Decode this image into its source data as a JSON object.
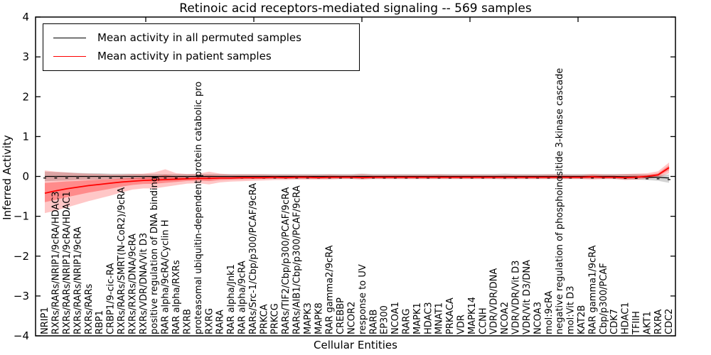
{
  "figure": {
    "title": "Retinoic acid receptors-mediated signaling -- 569 samples",
    "xlabel": "Cellular Entities",
    "ylabel": "Inferred Activity",
    "legend_items": [
      {
        "label": "Mean activity in all permuted samples",
        "color": "#000000"
      },
      {
        "label": "Mean activity in patient samples",
        "color": "#ff0000"
      }
    ],
    "colors": {
      "patient_line": "#ff0000",
      "patient_band": "rgba(255,0,0,0.22)",
      "patient_band_inner": "rgba(255,0,0,0.30)",
      "permuted_line": "#000000",
      "permuted_band": "rgba(130,130,130,0.35)",
      "axis": "#000000"
    }
  },
  "chart_data": {
    "type": "line",
    "title": "Retinoic acid receptors-mediated signaling -- 569 samples",
    "xlabel": "Cellular Entities",
    "ylabel": "Inferred Activity",
    "ylim": [
      -4,
      4
    ],
    "yticks": [
      4,
      3,
      2,
      1,
      0,
      -1,
      -2,
      -3,
      -4
    ],
    "ytick_labels": [
      "4",
      "3",
      "2",
      "1",
      "0",
      "−1",
      "−2",
      "−3",
      "−4"
    ],
    "grid": false,
    "legend_position": "upper left",
    "zero_marker_row": true,
    "categories": [
      "NRIP1",
      "RXRs/RARs/NRIP1/9cRA/HDAC3",
      "RXRs/RARs/NRIP1/9cRA/HDAC1",
      "RXRs/RARs/NRIP1/9cRA",
      "RXRs/RARs",
      "RBP1",
      "CRBP1/9-cic-RA",
      "RXRs/RARs/SMRT(N-CoR2)/9cRA",
      "RXRs/RXRs/DNA/9cRA",
      "RXRs/VDR/DNA/Vit D3",
      "positive regulation of DNA binding",
      "RAR alpha/9cRA/Cyclin H",
      "RAR alpha/RXRs",
      "RXRB",
      "proteasomal ubiquitin-dependent protein catabolic pro",
      "RXRG",
      "RARA",
      "RAR alpha/Jnk1",
      "RAR alpha/9cRA",
      "RARs/Src-1/Cbp/p300/PCAF/9cRA",
      "PRKCA",
      "PRKCG",
      "RARs/TIF2/Cbp/p300/PCAF/9cRA",
      "RARs/AIB1/Cbp/p300/PCAF/9cRA",
      "MAPK3",
      "MAPK8",
      "RAR gamma2/9cRA",
      "CREBBP",
      "NCOR2",
      "response to UV",
      "RARB",
      "EP300",
      "NCOA1",
      "RARG",
      "MAPK1",
      "HDAC3",
      "MNAT1",
      "PRKACA",
      "VDR",
      "MAPK14",
      "CCNH",
      "VDR/VDR/DNA",
      "NCOA2",
      "VDR/VDR/Vit D3",
      "VDR/Vit D3/DNA",
      "NCOA3",
      "mol:9cRA",
      "negative regulation of phosphoinositide 3-kinase cascade",
      "mol:Vit D3",
      "KAT2B",
      "RAR gamma1/9cRA",
      "Cbp/p300/PCAF",
      "CDK7",
      "HDAC1",
      "TFIIH",
      "AKT1",
      "RXRA",
      "CDC2"
    ],
    "series": [
      {
        "name": "Mean activity in all permuted samples",
        "color": "#000000",
        "values": [
          0,
          0,
          0,
          0,
          0,
          0,
          0,
          0,
          0,
          0,
          0,
          0,
          0,
          0,
          0,
          0,
          0,
          0,
          0,
          0,
          0,
          0,
          0,
          0,
          0,
          0,
          0,
          0,
          0,
          0,
          0,
          0,
          0,
          0,
          0,
          0,
          0,
          0,
          0,
          0,
          0,
          0,
          0,
          0,
          0,
          0,
          0,
          0,
          0,
          0,
          0,
          0,
          0,
          -0.01,
          -0.01,
          -0.02,
          -0.02,
          -0.04
        ],
        "band_upper": [
          0.12,
          0.11,
          0.1,
          0.09,
          0.08,
          0.08,
          0.07,
          0.07,
          0.07,
          0.06,
          0.06,
          0.06,
          0.06,
          0.06,
          0.06,
          0.06,
          0.06,
          0.06,
          0.06,
          0.06,
          0.06,
          0.06,
          0.06,
          0.06,
          0.06,
          0.06,
          0.06,
          0.06,
          0.06,
          0.07,
          0.06,
          0.06,
          0.06,
          0.06,
          0.06,
          0.06,
          0.06,
          0.06,
          0.06,
          0.06,
          0.06,
          0.06,
          0.07,
          0.06,
          0.06,
          0.06,
          0.06,
          0.06,
          0.06,
          0.06,
          0.06,
          0.06,
          0.06,
          0.06,
          0.06,
          0.05,
          0.04,
          0.05
        ],
        "band_lower": [
          -0.12,
          -0.11,
          -0.1,
          -0.09,
          -0.08,
          -0.08,
          -0.07,
          -0.07,
          -0.07,
          -0.06,
          -0.06,
          -0.06,
          -0.06,
          -0.06,
          -0.06,
          -0.06,
          -0.06,
          -0.06,
          -0.06,
          -0.06,
          -0.06,
          -0.06,
          -0.06,
          -0.06,
          -0.06,
          -0.06,
          -0.06,
          -0.06,
          -0.06,
          -0.07,
          -0.06,
          -0.06,
          -0.06,
          -0.06,
          -0.06,
          -0.06,
          -0.06,
          -0.06,
          -0.06,
          -0.06,
          -0.06,
          -0.06,
          -0.07,
          -0.06,
          -0.06,
          -0.06,
          -0.06,
          -0.06,
          -0.06,
          -0.06,
          -0.06,
          -0.06,
          -0.06,
          -0.08,
          -0.08,
          -0.09,
          -0.11,
          -0.16
        ]
      },
      {
        "name": "Mean activity in patient samples",
        "color": "#ff0000",
        "values": [
          -0.42,
          -0.36,
          -0.31,
          -0.27,
          -0.23,
          -0.2,
          -0.17,
          -0.14,
          -0.12,
          -0.1,
          -0.09,
          -0.08,
          -0.07,
          -0.06,
          -0.05,
          -0.05,
          -0.04,
          -0.04,
          -0.03,
          -0.03,
          -0.03,
          -0.02,
          -0.03,
          -0.02,
          -0.02,
          -0.03,
          -0.02,
          -0.02,
          -0.02,
          -0.03,
          -0.02,
          -0.02,
          -0.02,
          -0.02,
          -0.02,
          -0.02,
          -0.02,
          -0.02,
          -0.02,
          -0.02,
          -0.02,
          -0.02,
          -0.02,
          -0.02,
          -0.02,
          -0.02,
          -0.02,
          -0.02,
          -0.02,
          -0.02,
          -0.01,
          -0.02,
          -0.02,
          -0.03,
          -0.02,
          0.0,
          0.04,
          0.22
        ],
        "band_upper": [
          0.15,
          0.12,
          0.1,
          0.08,
          0.07,
          0.06,
          0.05,
          0.05,
          0.06,
          0.07,
          0.1,
          0.18,
          0.08,
          0.06,
          0.07,
          0.12,
          0.07,
          0.05,
          0.05,
          0.05,
          0.05,
          0.04,
          0.04,
          0.04,
          0.04,
          0.04,
          0.05,
          0.04,
          0.04,
          0.06,
          0.04,
          0.04,
          0.04,
          0.04,
          0.04,
          0.04,
          0.05,
          0.04,
          0.04,
          0.04,
          0.04,
          0.04,
          0.04,
          0.04,
          0.04,
          0.04,
          0.05,
          0.05,
          0.04,
          0.04,
          0.06,
          0.05,
          0.05,
          0.06,
          0.07,
          0.08,
          0.13,
          0.35
        ],
        "band_lower": [
          -0.92,
          -0.86,
          -0.78,
          -0.7,
          -0.62,
          -0.55,
          -0.48,
          -0.4,
          -0.33,
          -0.3,
          -0.3,
          -0.26,
          -0.22,
          -0.18,
          -0.17,
          -0.2,
          -0.15,
          -0.13,
          -0.12,
          -0.11,
          -0.1,
          -0.09,
          -0.09,
          -0.08,
          -0.08,
          -0.08,
          -0.08,
          -0.07,
          -0.07,
          -0.08,
          -0.07,
          -0.07,
          -0.07,
          -0.07,
          -0.07,
          -0.07,
          -0.07,
          -0.07,
          -0.07,
          -0.07,
          -0.07,
          -0.07,
          -0.07,
          -0.07,
          -0.07,
          -0.07,
          -0.07,
          -0.07,
          -0.07,
          -0.07,
          -0.08,
          -0.07,
          -0.07,
          -0.09,
          -0.08,
          -0.06,
          -0.03,
          0.08
        ]
      }
    ]
  }
}
